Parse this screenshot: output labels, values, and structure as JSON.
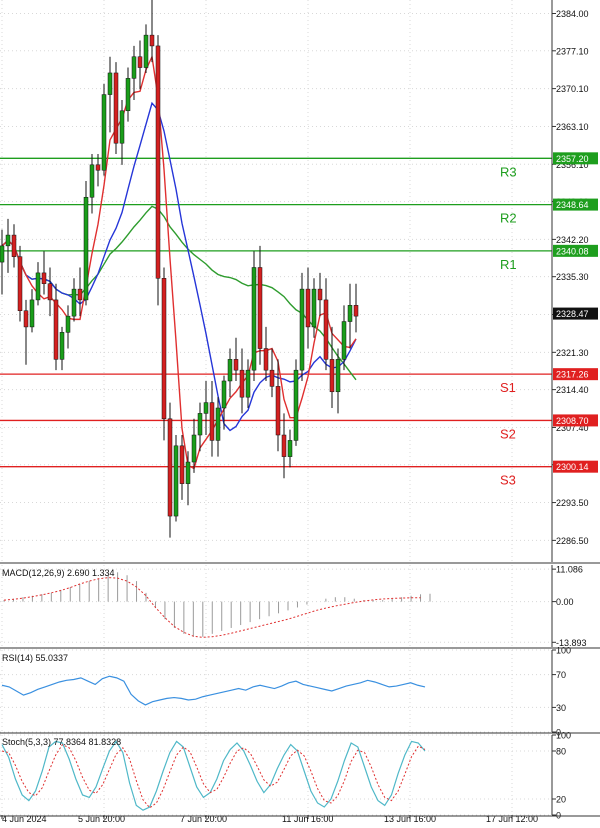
{
  "chart_data": [
    {
      "type": "candlestick",
      "panel": "price",
      "y_ticks": [
        2384.0,
        2377.1,
        2370.1,
        2363.1,
        2356.1,
        2349.2,
        2342.2,
        2335.3,
        2328.3,
        2321.3,
        2314.4,
        2307.4,
        2300.5,
        2293.5,
        2286.5
      ],
      "ylim": [
        2282.5,
        2386.5
      ],
      "current_price": "2328.47",
      "x_tick_labels": [
        "4 Jun 2024",
        "5 Jun 20:00",
        "7 Jun 20:00",
        "11 Jun 16:00",
        "13 Jun 16:00",
        "17 Jun 12:00"
      ],
      "x_tick_index": [
        0,
        17,
        34,
        51,
        68,
        85
      ],
      "levels": [
        {
          "name": "R3",
          "value": "2357.20",
          "color": "#1e9e1e"
        },
        {
          "name": "R2",
          "value": "2348.64",
          "color": "#1e9e1e"
        },
        {
          "name": "R1",
          "value": "2340.08",
          "color": "#1e9e1e"
        },
        {
          "name": "S1",
          "value": "2317.26",
          "color": "#e02020"
        },
        {
          "name": "S2",
          "value": "2308.70",
          "color": "#e02020"
        },
        {
          "name": "S3",
          "value": "2300.14",
          "color": "#e02020"
        }
      ],
      "candles": [
        [
          2338,
          2344,
          2332,
          2341
        ],
        [
          2341,
          2346,
          2336,
          2343
        ],
        [
          2343,
          2345,
          2337,
          2339
        ],
        [
          2339,
          2341,
          2327,
          2329
        ],
        [
          2329,
          2331,
          2319,
          2326
        ],
        [
          2326,
          2333,
          2325,
          2331
        ],
        [
          2331,
          2338,
          2330,
          2336
        ],
        [
          2336,
          2340,
          2332,
          2334
        ],
        [
          2334,
          2337,
          2328,
          2331
        ],
        [
          2331,
          2334,
          2318,
          2320
        ],
        [
          2320,
          2326,
          2318,
          2325
        ],
        [
          2325,
          2330,
          2322,
          2328
        ],
        [
          2328,
          2335,
          2327,
          2333
        ],
        [
          2333,
          2337,
          2328,
          2331
        ],
        [
          2331,
          2353,
          2330,
          2350
        ],
        [
          2350,
          2358,
          2347,
          2356
        ],
        [
          2356,
          2358,
          2352,
          2355
        ],
        [
          2355,
          2371,
          2354,
          2369
        ],
        [
          2369,
          2376,
          2362,
          2373
        ],
        [
          2373,
          2375,
          2358,
          2360
        ],
        [
          2360,
          2368,
          2356,
          2366
        ],
        [
          2366,
          2374,
          2364,
          2372
        ],
        [
          2372,
          2378,
          2368,
          2376
        ],
        [
          2376,
          2379,
          2370,
          2374
        ],
        [
          2374,
          2382,
          2373,
          2380
        ],
        [
          2380,
          2387,
          2375,
          2378
        ],
        [
          2378,
          2380,
          2330,
          2335
        ],
        [
          2335,
          2337,
          2305,
          2309
        ],
        [
          2309,
          2312,
          2287,
          2291
        ],
        [
          2291,
          2306,
          2290,
          2304
        ],
        [
          2304,
          2306,
          2294,
          2297
        ],
        [
          2297,
          2303,
          2293,
          2301
        ],
        [
          2301,
          2309,
          2299,
          2306
        ],
        [
          2306,
          2312,
          2303,
          2310
        ],
        [
          2310,
          2316,
          2306,
          2312
        ],
        [
          2312,
          2316,
          2302,
          2305
        ],
        [
          2305,
          2313,
          2302,
          2311
        ],
        [
          2311,
          2317,
          2307,
          2316
        ],
        [
          2316,
          2322,
          2313,
          2320
        ],
        [
          2320,
          2324,
          2316,
          2318
        ],
        [
          2318,
          2322,
          2310,
          2313
        ],
        [
          2313,
          2320,
          2311,
          2318
        ],
        [
          2318,
          2340,
          2316,
          2337
        ],
        [
          2337,
          2341,
          2319,
          2322
        ],
        [
          2322,
          2326,
          2316,
          2318
        ],
        [
          2318,
          2322,
          2313,
          2315
        ],
        [
          2315,
          2320,
          2303,
          2306
        ],
        [
          2306,
          2310,
          2298,
          2302
        ],
        [
          2302,
          2307,
          2300,
          2305
        ],
        [
          2305,
          2320,
          2304,
          2318
        ],
        [
          2318,
          2336,
          2316,
          2333
        ],
        [
          2333,
          2337,
          2322,
          2326
        ],
        [
          2326,
          2335,
          2324,
          2333
        ],
        [
          2333,
          2336,
          2328,
          2331
        ],
        [
          2331,
          2335,
          2318,
          2320
        ],
        [
          2320,
          2326,
          2311,
          2314
        ],
        [
          2314,
          2322,
          2310,
          2320
        ],
        [
          2320,
          2330,
          2318,
          2327
        ],
        [
          2327,
          2334,
          2322,
          2330
        ],
        [
          2330,
          2334,
          2325,
          2328
        ]
      ]
    },
    {
      "type": "macd",
      "panel": "macd",
      "label": "MACD(12,26,9) 2.690 1.334",
      "y_ticks": [
        "11.086",
        "0.00",
        "-13.893"
      ],
      "ylim": [
        -15.5,
        12.5
      ],
      "histogram": [
        0.5,
        1,
        1.5,
        2,
        2.5,
        3,
        4,
        5,
        6,
        7,
        8,
        9,
        10,
        9,
        7,
        3,
        -2,
        -6,
        -9,
        -11,
        -12,
        -12,
        -11,
        -10,
        -9,
        -8,
        -7,
        -6,
        -5,
        -4,
        -3,
        -2,
        -1,
        0,
        1,
        1.5,
        1.5,
        1,
        0.5,
        0.5,
        0.5,
        1,
        1.5,
        2,
        2.5,
        2.7
      ],
      "signal": [
        0.5,
        0.8,
        1.2,
        1.7,
        2.3,
        3,
        3.8,
        4.8,
        6,
        7,
        7.8,
        8.2,
        8,
        7,
        5,
        2,
        -2,
        -5.5,
        -8.5,
        -10.5,
        -11.8,
        -12.2,
        -12,
        -11.5,
        -10.8,
        -10,
        -9.2,
        -8.4,
        -7.6,
        -6.8,
        -6,
        -5,
        -4,
        -3,
        -2.2,
        -1.5,
        -0.9,
        -0.3,
        0.2,
        0.6,
        0.9,
        1.1,
        1.2,
        1.3,
        1.33
      ]
    },
    {
      "type": "line",
      "panel": "rsi",
      "label": "RSI(14) 55.0337",
      "y_ticks": [
        "100",
        "70",
        "30",
        "0"
      ],
      "ylim": [
        0,
        100
      ],
      "values": [
        57,
        55,
        50,
        45,
        48,
        52,
        55,
        58,
        61,
        63,
        64,
        66,
        62,
        58,
        65,
        68,
        66,
        62,
        46,
        38,
        33,
        37,
        39,
        41,
        42,
        41,
        39,
        40,
        43,
        45,
        47,
        49,
        51,
        53,
        51,
        55,
        57,
        55,
        53,
        56,
        60,
        62,
        58,
        56,
        54,
        52,
        50,
        53,
        56,
        58,
        60,
        63,
        61,
        58,
        55,
        56,
        58,
        60,
        57,
        55
      ]
    },
    {
      "type": "line",
      "panel": "stoch",
      "label": "Stoch(5,3,3) 77.8364 81.8328",
      "y_ticks": [
        "100",
        "80",
        "20",
        "0"
      ],
      "ylim": [
        0,
        100
      ],
      "k": [
        88,
        72,
        45,
        25,
        18,
        30,
        55,
        85,
        92,
        90,
        70,
        45,
        25,
        22,
        35,
        58,
        80,
        92,
        78,
        40,
        12,
        6,
        10,
        30,
        55,
        78,
        92,
        85,
        60,
        35,
        22,
        28,
        45,
        68,
        82,
        90,
        80,
        62,
        42,
        28,
        38,
        58,
        75,
        88,
        80,
        55,
        30,
        15,
        10,
        20,
        42,
        68,
        90,
        85,
        60,
        35,
        18,
        12,
        25,
        52,
        75,
        92,
        90,
        80
      ],
      "d": [
        80,
        78,
        62,
        42,
        28,
        24,
        34,
        55,
        75,
        88,
        84,
        68,
        47,
        31,
        27,
        38,
        57,
        76,
        84,
        70,
        43,
        19,
        9,
        15,
        32,
        54,
        75,
        85,
        79,
        60,
        39,
        28,
        32,
        47,
        65,
        80,
        84,
        77,
        61,
        44,
        36,
        41,
        57,
        74,
        81,
        74,
        55,
        33,
        18,
        15,
        24,
        43,
        67,
        81,
        78,
        60,
        38,
        22,
        18,
        30,
        51,
        73,
        86,
        82
      ]
    }
  ]
}
